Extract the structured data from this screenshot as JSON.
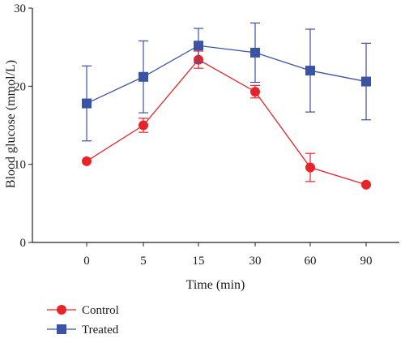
{
  "chart_data": {
    "type": "line",
    "xlabel": "Time (min)",
    "ylabel": "Blood glucose (mmol/L)",
    "categories": [
      "0",
      "5",
      "15",
      "30",
      "60",
      "90"
    ],
    "yticks": [
      "0",
      "10",
      "20",
      "30"
    ],
    "ylim": [
      0,
      30
    ],
    "grid": false,
    "legend_position": "bottom-left",
    "series": [
      {
        "name": "Control",
        "color": "#e8232a",
        "marker": "circle",
        "values": [
          10.4,
          15.0,
          23.4,
          19.3,
          9.6,
          7.4
        ],
        "error": [
          0.0,
          0.9,
          1.1,
          0.8,
          1.8,
          0.0
        ]
      },
      {
        "name": "Treated",
        "color": "#3a53a4",
        "marker": "square",
        "values": [
          17.8,
          21.2,
          25.2,
          24.3,
          22.0,
          20.6
        ],
        "error": [
          4.8,
          4.6,
          2.2,
          3.8,
          5.3,
          4.9
        ]
      }
    ]
  }
}
